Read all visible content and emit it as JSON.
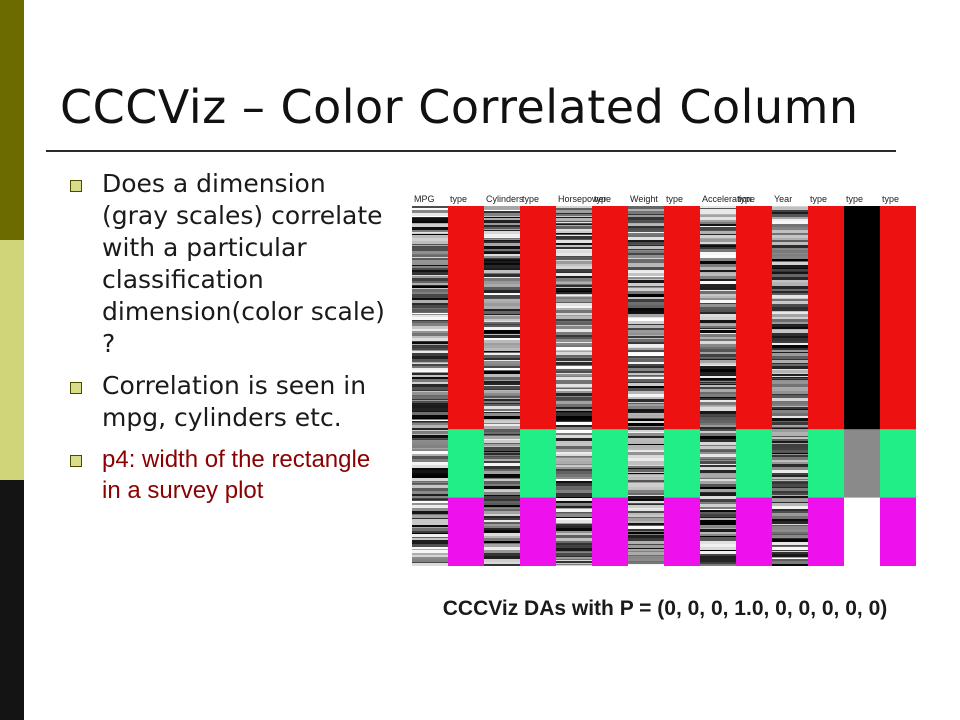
{
  "slide": {
    "title": "CCCViz – Color Correlated Column",
    "bullets": [
      {
        "text": "Does a dimension (gray scales) correlate with a particular classification dimension(color scale) ?"
      },
      {
        "text": "Correlation is seen in mpg, cylinders etc."
      },
      {
        "text": "p4: width of the rectangle in a survey plot"
      }
    ],
    "caption": "CCCViz DAs with P = (0, 0, 0, 1.0, 0, 0, 0, 0, 0)",
    "colors": {
      "left_stripe_top": "#6b6b00",
      "left_stripe_middle": "#cfd67a",
      "left_stripe_bottom": "#141414",
      "highlight_text": "#8b0000",
      "class_red": "#ee1111",
      "class_green": "#22ee88",
      "class_magenta": "#ee11ee"
    }
  },
  "viz": {
    "column_headers": [
      "MPG",
      "type",
      "Cylinders",
      "type",
      "Horsepower",
      "type",
      "Weight",
      "type",
      "Acceleration",
      "type",
      "Year",
      "type",
      "type",
      "type"
    ],
    "column_kinds": [
      "gray",
      "color",
      "gray",
      "color",
      "gray",
      "color",
      "gray",
      "color",
      "gray",
      "color",
      "gray",
      "color",
      "solid",
      "color"
    ],
    "class_segments": [
      {
        "class": "red",
        "share": 0.62
      },
      {
        "class": "green",
        "share": 0.19
      },
      {
        "class": "magenta",
        "share": 0.19
      }
    ]
  }
}
